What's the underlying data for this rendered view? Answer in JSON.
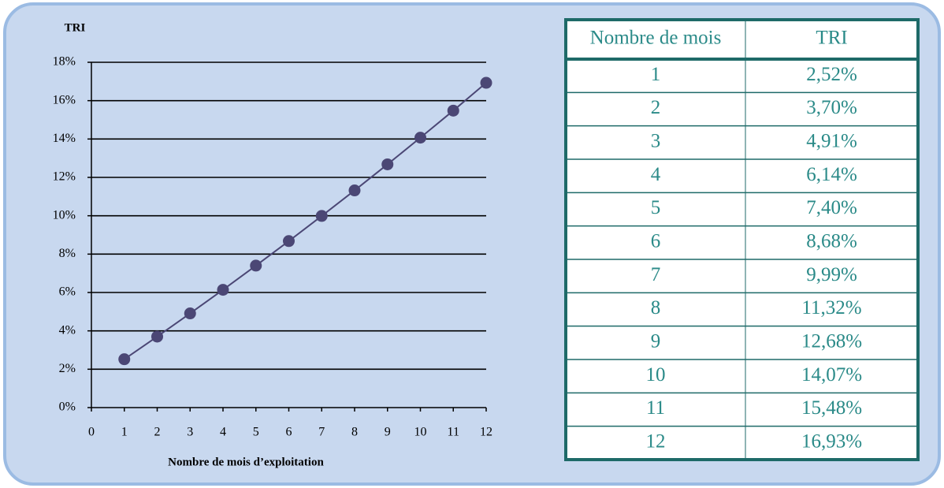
{
  "chart_data": {
    "type": "line",
    "title": "TRI",
    "x_label": "Nombre de mois d’exploitation",
    "x": [
      1,
      2,
      3,
      4,
      5,
      6,
      7,
      8,
      9,
      10,
      11,
      12
    ],
    "series": [
      {
        "name": "TRI",
        "color": "#4b4775",
        "values": [
          2.52,
          3.7,
          4.91,
          6.14,
          7.4,
          8.68,
          9.99,
          11.32,
          12.68,
          14.07,
          15.48,
          16.93
        ]
      }
    ],
    "xlim": [
      0,
      12
    ],
    "xticks": [
      0,
      1,
      2,
      3,
      4,
      5,
      6,
      7,
      8,
      9,
      10,
      11,
      12
    ],
    "ylim": [
      0,
      18
    ],
    "yticks": [
      {
        "value": 0,
        "label": "0%"
      },
      {
        "value": 2,
        "label": "2%"
      },
      {
        "value": 4,
        "label": "4%"
      },
      {
        "value": 6,
        "label": "6%"
      },
      {
        "value": 8,
        "label": "8%"
      },
      {
        "value": 10,
        "label": "10%"
      },
      {
        "value": 12,
        "label": "12%"
      },
      {
        "value": 14,
        "label": "14%"
      },
      {
        "value": 16,
        "label": "16%"
      },
      {
        "value": 18,
        "label": "18%"
      }
    ],
    "grid": true
  },
  "table": {
    "header": [
      "Nombre de mois",
      "TRI"
    ],
    "rows": [
      [
        "1",
        "2,52%"
      ],
      [
        "2",
        "3,70%"
      ],
      [
        "3",
        "4,91%"
      ],
      [
        "4",
        "6,14%"
      ],
      [
        "5",
        "7,40%"
      ],
      [
        "6",
        "8,68%"
      ],
      [
        "7",
        "9,99%"
      ],
      [
        "8",
        "11,32%"
      ],
      [
        "9",
        "12,68%"
      ],
      [
        "10",
        "14,07%"
      ],
      [
        "11",
        "15,48%"
      ],
      [
        "12",
        "16,93%"
      ]
    ]
  }
}
